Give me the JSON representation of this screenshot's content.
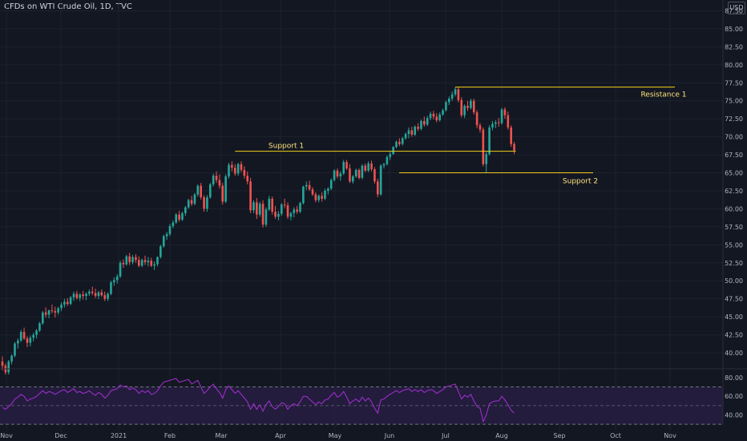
{
  "header": {
    "title": "CFDs on WTI Crude Oil, 1D, TVC",
    "currency": "USD"
  },
  "chart_data": {
    "type": "candlestick",
    "price_axis": {
      "ticks": [
        "87.50",
        "85.00",
        "82.50",
        "80.00",
        "77.50",
        "75.00",
        "72.50",
        "70.00",
        "67.50",
        "65.00",
        "62.50",
        "60.00",
        "57.50",
        "55.00",
        "52.50",
        "50.00",
        "47.50",
        "45.00",
        "42.50",
        "40.00"
      ],
      "ylim": [
        38.0,
        89.0
      ]
    },
    "time_axis": {
      "labels": [
        "Nov",
        "Dec",
        "2021",
        "Feb",
        "Mar",
        "Apr",
        "May",
        "Jun",
        "Jul",
        "Aug",
        "Sep",
        "Oct",
        "Nov"
      ]
    },
    "candles": [
      [
        38.8,
        39.5,
        37.6,
        38.2
      ],
      [
        38.2,
        38.5,
        37.0,
        37.3
      ],
      [
        37.3,
        39.0,
        37.0,
        38.8
      ],
      [
        38.8,
        39.8,
        38.4,
        39.6
      ],
      [
        39.6,
        41.5,
        39.4,
        41.3
      ],
      [
        41.3,
        42.0,
        40.6,
        41.7
      ],
      [
        41.7,
        43.2,
        41.5,
        42.9
      ],
      [
        42.9,
        43.5,
        41.8,
        42.0
      ],
      [
        42.0,
        42.3,
        40.8,
        41.4
      ],
      [
        41.4,
        42.4,
        40.9,
        42.1
      ],
      [
        42.1,
        42.8,
        41.6,
        42.5
      ],
      [
        42.5,
        43.3,
        42.0,
        43.1
      ],
      [
        43.1,
        44.3,
        42.9,
        44.1
      ],
      [
        44.1,
        45.8,
        43.9,
        45.6
      ],
      [
        45.6,
        46.3,
        44.9,
        45.3
      ],
      [
        45.3,
        46.0,
        44.8,
        45.9
      ],
      [
        45.9,
        46.7,
        45.5,
        45.8
      ],
      [
        45.8,
        46.4,
        44.9,
        45.6
      ],
      [
        45.6,
        46.4,
        45.3,
        46.2
      ],
      [
        46.2,
        47.0,
        45.8,
        46.7
      ],
      [
        46.7,
        47.5,
        46.3,
        47.1
      ],
      [
        47.1,
        47.6,
        46.5,
        46.8
      ],
      [
        46.8,
        47.9,
        46.6,
        47.7
      ],
      [
        47.7,
        48.5,
        47.2,
        48.2
      ],
      [
        48.2,
        48.6,
        47.4,
        47.6
      ],
      [
        47.6,
        48.3,
        47.2,
        48.1
      ],
      [
        48.1,
        48.6,
        47.4,
        47.9
      ],
      [
        47.9,
        48.4,
        47.3,
        48.2
      ],
      [
        48.2,
        48.8,
        47.9,
        48.5
      ],
      [
        48.5,
        49.2,
        48.0,
        48.3
      ],
      [
        48.3,
        48.9,
        47.6,
        47.9
      ],
      [
        47.9,
        48.6,
        47.5,
        48.4
      ],
      [
        48.4,
        48.8,
        47.8,
        48.0
      ],
      [
        48.0,
        48.5,
        47.2,
        47.5
      ],
      [
        47.5,
        48.4,
        47.2,
        48.2
      ],
      [
        48.2,
        50.0,
        48.0,
        49.8
      ],
      [
        49.8,
        50.5,
        49.3,
        50.1
      ],
      [
        50.1,
        50.9,
        49.6,
        50.6
      ],
      [
        50.6,
        52.8,
        50.4,
        52.5
      ],
      [
        52.5,
        53.0,
        51.8,
        52.3
      ],
      [
        52.3,
        53.6,
        52.1,
        53.4
      ],
      [
        53.4,
        53.9,
        52.2,
        52.6
      ],
      [
        52.6,
        53.6,
        52.3,
        53.3
      ],
      [
        53.3,
        53.7,
        52.5,
        52.9
      ],
      [
        52.9,
        53.4,
        51.9,
        52.1
      ],
      [
        52.1,
        53.1,
        51.9,
        52.9
      ],
      [
        52.9,
        53.5,
        52.2,
        52.6
      ],
      [
        52.6,
        53.3,
        52.0,
        52.8
      ],
      [
        52.8,
        53.2,
        51.9,
        52.1
      ],
      [
        52.1,
        52.7,
        51.5,
        52.3
      ],
      [
        52.3,
        53.4,
        52.0,
        53.3
      ],
      [
        53.3,
        55.0,
        53.1,
        54.8
      ],
      [
        54.8,
        56.4,
        54.6,
        56.2
      ],
      [
        56.2,
        56.8,
        55.7,
        56.5
      ],
      [
        56.5,
        57.9,
        56.2,
        57.6
      ],
      [
        57.6,
        58.4,
        57.3,
        58.1
      ],
      [
        58.1,
        59.4,
        57.9,
        59.2
      ],
      [
        59.2,
        59.7,
        58.2,
        58.5
      ],
      [
        58.5,
        59.6,
        58.3,
        59.4
      ],
      [
        59.4,
        60.4,
        59.0,
        60.2
      ],
      [
        60.2,
        61.4,
        60.0,
        61.2
      ],
      [
        61.2,
        61.8,
        60.4,
        60.7
      ],
      [
        60.7,
        62.2,
        60.5,
        62.0
      ],
      [
        62.0,
        63.4,
        61.7,
        63.2
      ],
      [
        63.2,
        63.6,
        61.3,
        61.6
      ],
      [
        61.6,
        61.9,
        59.6,
        60.0
      ],
      [
        60.0,
        61.9,
        59.6,
        61.6
      ],
      [
        61.6,
        63.6,
        61.4,
        63.4
      ],
      [
        63.4,
        64.9,
        63.1,
        64.6
      ],
      [
        64.6,
        65.2,
        63.6,
        64.0
      ],
      [
        64.0,
        64.8,
        62.8,
        63.2
      ],
      [
        63.2,
        63.6,
        60.6,
        61.0
      ],
      [
        61.0,
        64.8,
        60.8,
        64.5
      ],
      [
        64.5,
        66.4,
        64.2,
        66.1
      ],
      [
        66.1,
        66.6,
        65.2,
        65.7
      ],
      [
        65.7,
        66.2,
        64.6,
        64.9
      ],
      [
        64.9,
        66.4,
        64.6,
        66.2
      ],
      [
        66.2,
        66.6,
        65.1,
        65.4
      ],
      [
        65.4,
        65.9,
        64.2,
        64.6
      ],
      [
        64.6,
        65.2,
        63.4,
        63.8
      ],
      [
        63.8,
        64.3,
        59.4,
        59.8
      ],
      [
        59.8,
        61.2,
        59.4,
        60.9
      ],
      [
        60.9,
        61.5,
        58.6,
        59.2
      ],
      [
        59.2,
        61.0,
        58.9,
        60.7
      ],
      [
        60.7,
        61.2,
        57.4,
        57.8
      ],
      [
        57.8,
        60.2,
        57.5,
        59.9
      ],
      [
        59.9,
        61.8,
        59.7,
        61.4
      ],
      [
        61.4,
        61.7,
        59.2,
        59.6
      ],
      [
        59.6,
        60.4,
        58.6,
        58.9
      ],
      [
        58.9,
        59.7,
        58.4,
        59.3
      ],
      [
        59.3,
        60.8,
        59.0,
        60.6
      ],
      [
        60.6,
        61.4,
        60.1,
        60.5
      ],
      [
        60.5,
        60.9,
        58.6,
        58.9
      ],
      [
        58.9,
        59.6,
        58.4,
        59.4
      ],
      [
        59.4,
        60.2,
        58.8,
        59.9
      ],
      [
        59.9,
        60.4,
        59.3,
        59.6
      ],
      [
        59.6,
        61.0,
        59.4,
        60.8
      ],
      [
        60.8,
        63.2,
        60.6,
        63.1
      ],
      [
        63.1,
        63.8,
        62.6,
        63.3
      ],
      [
        63.3,
        63.9,
        62.5,
        62.7
      ],
      [
        62.7,
        63.0,
        61.8,
        62.0
      ],
      [
        62.0,
        62.3,
        60.9,
        61.2
      ],
      [
        61.2,
        62.0,
        60.9,
        61.8
      ],
      [
        61.8,
        62.3,
        61.0,
        61.4
      ],
      [
        61.4,
        62.8,
        61.2,
        62.5
      ],
      [
        62.5,
        63.0,
        62.0,
        62.8
      ],
      [
        62.8,
        64.2,
        62.6,
        64.0
      ],
      [
        64.0,
        65.5,
        63.8,
        65.3
      ],
      [
        65.3,
        65.6,
        64.2,
        64.5
      ],
      [
        64.5,
        65.2,
        63.9,
        64.9
      ],
      [
        64.9,
        66.8,
        64.7,
        66.5
      ],
      [
        66.5,
        66.8,
        65.4,
        65.6
      ],
      [
        65.6,
        66.2,
        63.6,
        63.8
      ],
      [
        63.8,
        64.7,
        63.5,
        64.5
      ],
      [
        64.5,
        65.6,
        64.3,
        65.4
      ],
      [
        65.4,
        65.6,
        64.1,
        64.3
      ],
      [
        64.3,
        66.2,
        64.1,
        66.0
      ],
      [
        66.0,
        66.3,
        65.1,
        65.3
      ],
      [
        65.3,
        66.6,
        65.1,
        66.3
      ],
      [
        66.3,
        66.7,
        65.2,
        65.5
      ],
      [
        65.5,
        65.8,
        63.5,
        63.8
      ],
      [
        63.8,
        64.2,
        61.6,
        62.0
      ],
      [
        62.0,
        66.2,
        61.8,
        66.0
      ],
      [
        66.0,
        66.4,
        65.6,
        66.2
      ],
      [
        66.2,
        67.4,
        66.0,
        67.2
      ],
      [
        67.2,
        68.0,
        66.8,
        67.6
      ],
      [
        67.6,
        68.7,
        67.5,
        68.6
      ],
      [
        68.6,
        69.5,
        68.4,
        69.3
      ],
      [
        69.3,
        69.8,
        68.7,
        69.0
      ],
      [
        69.0,
        70.0,
        68.8,
        69.8
      ],
      [
        69.8,
        70.6,
        69.6,
        70.4
      ],
      [
        70.4,
        71.3,
        69.8,
        70.9
      ],
      [
        70.9,
        71.4,
        70.0,
        70.3
      ],
      [
        70.3,
        71.6,
        70.1,
        71.4
      ],
      [
        71.4,
        71.9,
        70.8,
        71.1
      ],
      [
        71.1,
        72.4,
        70.9,
        72.2
      ],
      [
        72.2,
        72.8,
        71.4,
        71.7
      ],
      [
        71.7,
        72.9,
        71.5,
        72.6
      ],
      [
        72.6,
        73.5,
        72.3,
        73.2
      ],
      [
        73.2,
        73.6,
        72.4,
        72.8
      ],
      [
        72.8,
        73.3,
        72.0,
        72.3
      ],
      [
        72.3,
        73.4,
        72.1,
        73.1
      ],
      [
        73.1,
        73.9,
        72.9,
        73.7
      ],
      [
        73.7,
        75.0,
        73.5,
        74.8
      ],
      [
        74.8,
        75.6,
        74.4,
        75.3
      ],
      [
        75.3,
        76.3,
        75.0,
        75.9
      ],
      [
        75.9,
        76.9,
        75.6,
        76.6
      ],
      [
        76.6,
        76.9,
        74.8,
        75.1
      ],
      [
        75.1,
        75.5,
        72.7,
        73.0
      ],
      [
        73.0,
        74.5,
        72.6,
        74.3
      ],
      [
        74.3,
        75.0,
        73.6,
        74.0
      ],
      [
        74.0,
        75.3,
        73.8,
        75.0
      ],
      [
        75.0,
        75.3,
        73.1,
        73.4
      ],
      [
        73.4,
        73.7,
        71.2,
        71.6
      ],
      [
        71.6,
        71.9,
        70.6,
        71.0
      ],
      [
        71.0,
        71.3,
        65.9,
        66.2
      ],
      [
        66.2,
        67.9,
        65.0,
        67.6
      ],
      [
        67.6,
        71.6,
        67.4,
        71.3
      ],
      [
        71.3,
        72.2,
        70.9,
        71.8
      ],
      [
        71.8,
        72.3,
        71.2,
        72.0
      ],
      [
        72.0,
        72.6,
        71.4,
        71.9
      ],
      [
        71.9,
        74.0,
        71.7,
        73.8
      ],
      [
        73.8,
        74.1,
        72.5,
        73.0
      ],
      [
        73.0,
        73.5,
        71.0,
        71.3
      ],
      [
        71.3,
        71.6,
        68.6,
        69.0
      ],
      [
        69.0,
        69.3,
        67.6,
        68.1
      ]
    ],
    "rsi": {
      "ticks": [
        "80.00",
        "60.00",
        "40.00"
      ],
      "upper": 70,
      "middle": 50,
      "lower": 30,
      "ylim": [
        25,
        85
      ],
      "values": [
        48,
        46,
        49,
        52,
        57,
        59,
        62,
        60,
        55,
        57,
        58,
        60,
        63,
        66,
        63,
        65,
        64,
        62,
        64,
        66,
        67,
        64,
        66,
        68,
        64,
        65,
        63,
        64,
        66,
        63,
        61,
        64,
        62,
        58,
        61,
        66,
        67,
        68,
        72,
        70,
        71,
        67,
        69,
        67,
        63,
        66,
        64,
        66,
        62,
        63,
        66,
        71,
        75,
        76,
        77,
        78,
        79,
        75,
        76,
        77,
        78,
        73,
        75,
        77,
        70,
        63,
        66,
        70,
        73,
        68,
        64,
        58,
        67,
        71,
        67,
        63,
        66,
        62,
        58,
        54,
        46,
        52,
        46,
        51,
        44,
        51,
        55,
        49,
        46,
        49,
        53,
        52,
        46,
        50,
        52,
        50,
        54,
        60,
        60,
        57,
        54,
        51,
        54,
        52,
        56,
        57,
        61,
        64,
        59,
        61,
        65,
        59,
        52,
        55,
        57,
        54,
        59,
        55,
        58,
        54,
        47,
        42,
        56,
        57,
        60,
        62,
        64,
        66,
        64,
        66,
        67,
        68,
        65,
        67,
        65,
        67,
        64,
        66,
        67,
        66,
        63,
        65,
        67,
        70,
        71,
        72,
        73,
        65,
        57,
        61,
        59,
        62,
        55,
        49,
        47,
        33,
        40,
        52,
        54,
        55,
        55,
        60,
        56,
        51,
        45,
        42
      ]
    },
    "levels": [
      {
        "label": "Resistance 1",
        "value": 76.9
      },
      {
        "label": "Support 1",
        "value": 68.0
      },
      {
        "label": "Support 2",
        "value": 65.0
      }
    ],
    "colors": {
      "up": "#26a69a",
      "down": "#ef5350",
      "level": "#f2d21a",
      "rsi": "#a62fd6",
      "rsi_band": "#2a1f47",
      "bg": "#131722"
    },
    "grid": true
  }
}
